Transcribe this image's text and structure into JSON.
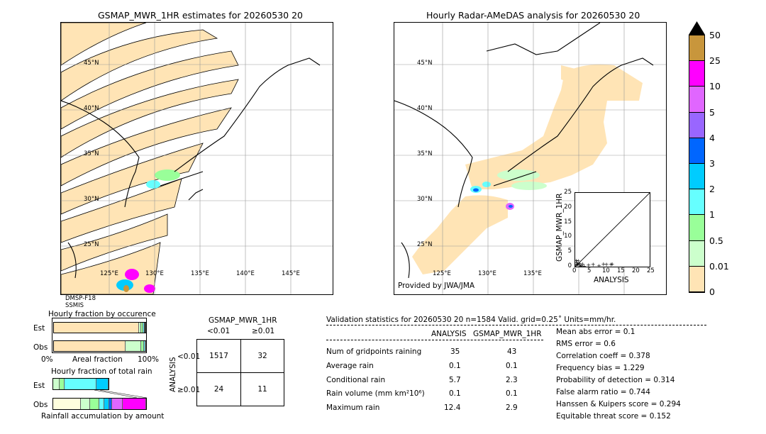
{
  "left_map": {
    "title": "GSMAP_MWR_1HR estimates for 20260530 20",
    "lat_labels": [
      "45°N",
      "40°N",
      "35°N",
      "30°N",
      "25°N"
    ],
    "lon_labels": [
      "125°E",
      "130°E",
      "135°E",
      "140°E",
      "145°E"
    ],
    "sensor_labels": [
      "DMSP-F18",
      "SSMIS"
    ]
  },
  "right_map": {
    "title": "Hourly Radar-AMeDAS analysis for 20260530 20",
    "lat_labels": [
      "45°N",
      "40°N",
      "35°N",
      "30°N",
      "25°N"
    ],
    "lon_labels": [
      "125°E",
      "130°E",
      "135°E"
    ],
    "provided_by": "Provided by JWA/JMA"
  },
  "colorbar": {
    "ticks": [
      "50",
      "25",
      "10",
      "5",
      "4",
      "3",
      "2",
      "1",
      "0.5",
      "0.01",
      "0"
    ],
    "colors": [
      "#c8963c",
      "#ff00ff",
      "#e066ff",
      "#9966ff",
      "#0066ff",
      "#00ccff",
      "#66ffff",
      "#99ff99",
      "#ccffcc",
      "#ffe4b5"
    ]
  },
  "scatter": {
    "xlabel": "ANALYSIS",
    "ylabel": "GSMAP_MWR_1HR",
    "ticks": [
      "0",
      "5",
      "10",
      "15",
      "20",
      "25"
    ]
  },
  "fraction_occurrence": {
    "title": "Hourly fraction by occurence",
    "rows": [
      "Est",
      "Obs"
    ],
    "xlabels": [
      "0%",
      "Areal fraction",
      "100%"
    ]
  },
  "fraction_total": {
    "title": "Hourly fraction of total rain",
    "rows": [
      "Est",
      "Obs"
    ],
    "xlabel": "Rainfall accumulation by amount"
  },
  "contingency": {
    "title": "GSMAP_MWR_1HR",
    "col_headers": [
      "<0.01",
      "≥0.01"
    ],
    "row_headers": [
      "<0.01",
      "≥0.01"
    ],
    "side_label": "ANALYSIS",
    "cells": [
      [
        "1517",
        "32"
      ],
      [
        "24",
        "11"
      ]
    ]
  },
  "validation": {
    "header": "Validation statistics for 20260530 20  n=1584 Valid. grid=0.25˚ Units=mm/hr.",
    "col_analysis": "ANALYSIS",
    "col_gsmap": "GSMAP_MWR_1HR",
    "rows": [
      {
        "label": "Num of gridpoints raining",
        "analysis": "35",
        "gsmap": "43"
      },
      {
        "label": "Average rain",
        "analysis": "0.1",
        "gsmap": "0.1"
      },
      {
        "label": "Conditional rain",
        "analysis": "5.7",
        "gsmap": "2.3"
      },
      {
        "label": "Rain volume (mm km²10⁶)",
        "analysis": "0.1",
        "gsmap": "0.1"
      },
      {
        "label": "Maximum rain",
        "analysis": "12.4",
        "gsmap": "2.9"
      }
    ],
    "scores": [
      "Mean abs error =    0.1",
      "RMS error =    0.6",
      "Correlation coeff =  0.378",
      "Frequency bias =  1.229",
      "Probability of detection =  0.314",
      "False alarm ratio =  0.744",
      "Hanssen & Kuipers score =  0.294",
      "Equitable threat score =  0.152"
    ]
  },
  "chart_data": [
    {
      "type": "scatter",
      "xlabel": "ANALYSIS",
      "ylabel": "GSMAP_MWR_1HR",
      "xlim": [
        0,
        25
      ],
      "ylim": [
        0,
        25
      ],
      "points": [
        [
          0.3,
          2.2
        ],
        [
          0.5,
          1.5
        ],
        [
          0.8,
          1.0
        ],
        [
          1.0,
          2.0
        ],
        [
          1.2,
          0.6
        ],
        [
          1.5,
          1.2
        ],
        [
          2.0,
          0.5
        ],
        [
          2.5,
          1.0
        ],
        [
          3.0,
          0.3
        ],
        [
          4.5,
          0.6
        ],
        [
          6.0,
          0.8
        ],
        [
          8.0,
          0.4
        ],
        [
          9.5,
          1.0
        ],
        [
          10.5,
          0.9
        ],
        [
          12.0,
          0.8
        ],
        [
          12.4,
          1.0
        ],
        [
          0.2,
          0.4
        ],
        [
          0.6,
          0.8
        ],
        [
          1.8,
          0.3
        ]
      ]
    },
    {
      "type": "bar",
      "title": "Hourly fraction by occurence",
      "categories": [
        "Est",
        "Obs"
      ],
      "stacked_fractions": [
        [
          0.92,
          0.03,
          0.02,
          0.015,
          0.015
        ],
        [
          0.78,
          0.17,
          0.03,
          0.01,
          0.01
        ]
      ]
    },
    {
      "type": "bar",
      "title": "Hourly fraction of total rain",
      "categories": [
        "Est",
        "Obs"
      ],
      "stacked_fractions": [
        [
          0.07,
          0.05,
          0.35,
          0.13
        ],
        [
          0.3,
          0.1,
          0.1,
          0.05,
          0.05,
          0.03,
          0.12,
          0.25
        ]
      ]
    },
    {
      "type": "table",
      "title": "GSMAP_MWR_1HR",
      "rows": [
        "<0.01",
        "≥0.01"
      ],
      "columns": [
        "<0.01",
        "≥0.01"
      ],
      "values": [
        [
          1517,
          32
        ],
        [
          24,
          11
        ]
      ]
    }
  ]
}
